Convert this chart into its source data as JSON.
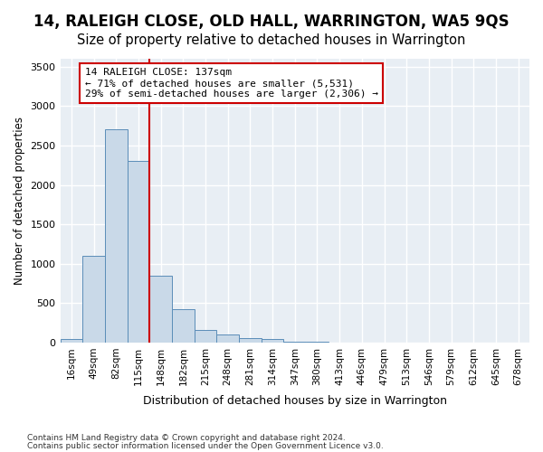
{
  "title": "14, RALEIGH CLOSE, OLD HALL, WARRINGTON, WA5 9QS",
  "subtitle": "Size of property relative to detached houses in Warrington",
  "xlabel": "Distribution of detached houses by size in Warrington",
  "ylabel": "Number of detached properties",
  "footnote1": "Contains HM Land Registry data © Crown copyright and database right 2024.",
  "footnote2": "Contains public sector information licensed under the Open Government Licence v3.0.",
  "annotation_line1": "14 RALEIGH CLOSE: 137sqm",
  "annotation_line2": "← 71% of detached houses are smaller (5,531)",
  "annotation_line3": "29% of semi-detached houses are larger (2,306) →",
  "bar_values": [
    50,
    1100,
    2700,
    2300,
    850,
    420,
    160,
    100,
    60,
    40,
    10,
    5,
    3,
    2,
    1,
    1,
    0,
    0,
    0,
    0,
    0
  ],
  "categories": [
    "16sqm",
    "49sqm",
    "82sqm",
    "115sqm",
    "148sqm",
    "182sqm",
    "215sqm",
    "248sqm",
    "281sqm",
    "314sqm",
    "347sqm",
    "380sqm",
    "413sqm",
    "446sqm",
    "479sqm",
    "513sqm",
    "546sqm",
    "579sqm",
    "612sqm",
    "645sqm",
    "678sqm"
  ],
  "bar_color": "#c9d9e8",
  "bar_edge_color": "#5b8db8",
  "vline_color": "#cc0000",
  "ylim": [
    0,
    3600
  ],
  "yticks": [
    0,
    500,
    1000,
    1500,
    2000,
    2500,
    3000,
    3500
  ],
  "bg_color": "#e8eef4",
  "grid_color": "#ffffff",
  "annotation_box_color": "#ffffff",
  "annotation_box_edge": "#cc0000",
  "title_fontsize": 12,
  "subtitle_fontsize": 10.5
}
